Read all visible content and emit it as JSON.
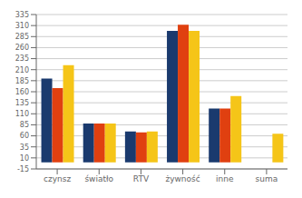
{
  "chart_data": {
    "type": "bar",
    "categories": [
      "czynsz",
      "światło",
      "RTV",
      "żywność",
      "inne",
      "suma"
    ],
    "series": [
      {
        "color": "#1a3a6e",
        "values": [
          190,
          88,
          70,
          298,
          122,
          0
        ]
      },
      {
        "color": "#e04010",
        "values": [
          168,
          88,
          68,
          312,
          122,
          0
        ]
      },
      {
        "color": "#f5c518",
        "values": [
          220,
          88,
          70,
          298,
          150,
          65
        ]
      }
    ],
    "ylim": [
      -15,
      335
    ],
    "yticks": [
      -15,
      10,
      35,
      60,
      85,
      110,
      135,
      160,
      185,
      210,
      235,
      260,
      285,
      310,
      335
    ],
    "grid": true
  }
}
